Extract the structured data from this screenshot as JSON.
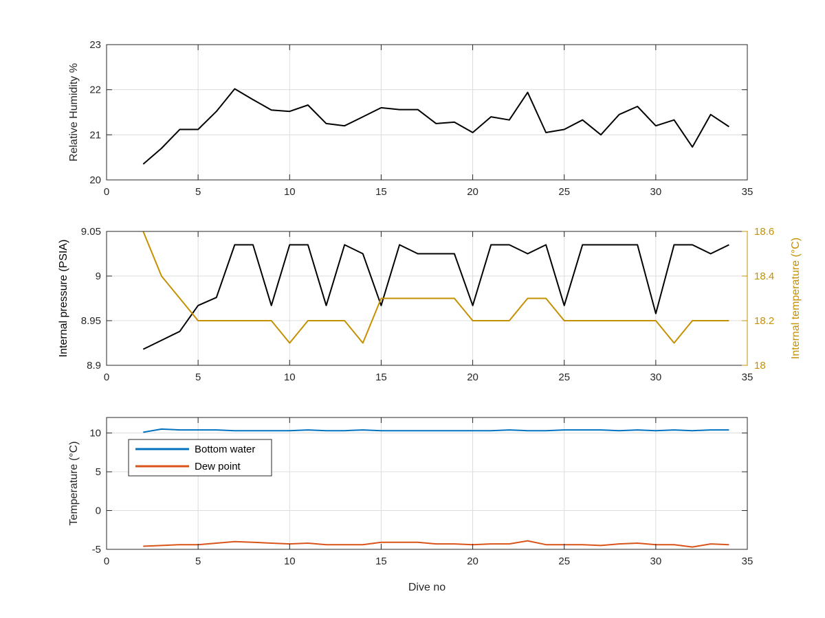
{
  "chart_data": [
    {
      "type": "line",
      "title": "",
      "xlabel": "",
      "ylabel": "Relative Humidity %",
      "xlim": [
        0,
        35
      ],
      "ylim": [
        20,
        23
      ],
      "xticks": [
        0,
        5,
        10,
        15,
        20,
        25,
        30,
        35
      ],
      "yticks": [
        20,
        21,
        22,
        23
      ],
      "grid": true,
      "series": [
        {
          "color": "#000000",
          "x": [
            2,
            3,
            4,
            5,
            6,
            7,
            8,
            9,
            10,
            11,
            12,
            13,
            14,
            15,
            16,
            17,
            18,
            19,
            20,
            21,
            22,
            23,
            24,
            25,
            26,
            27,
            28,
            29,
            30,
            31,
            32,
            33,
            34
          ],
          "y": [
            20.35,
            20.7,
            21.12,
            21.12,
            21.52,
            22.02,
            21.78,
            21.55,
            21.52,
            21.66,
            21.25,
            21.2,
            21.4,
            21.6,
            21.56,
            21.56,
            21.25,
            21.28,
            21.05,
            21.4,
            21.33,
            21.94,
            21.05,
            21.12,
            21.33,
            21.0,
            21.45,
            21.63,
            21.2,
            21.33,
            20.73,
            21.45,
            21.18
          ]
        }
      ]
    },
    {
      "type": "line",
      "title": "",
      "xlabel": "",
      "ylabel": "Internal pressure (PSIA)",
      "ylabel_right": "Internal temperature (°C)",
      "xlim": [
        0,
        35
      ],
      "ylim": [
        8.9,
        9.05
      ],
      "ylim_right": [
        18,
        18.6
      ],
      "xticks": [
        0,
        5,
        10,
        15,
        20,
        25,
        30,
        35
      ],
      "yticks": [
        8.9,
        8.95,
        9,
        9.05
      ],
      "yticks_right": [
        18,
        18.2,
        18.4,
        18.6
      ],
      "grid": true,
      "series": [
        {
          "axis": "left",
          "color": "#000000",
          "x": [
            2,
            3,
            4,
            5,
            6,
            7,
            8,
            9,
            10,
            11,
            12,
            13,
            14,
            15,
            16,
            17,
            18,
            19,
            20,
            21,
            22,
            23,
            24,
            25,
            26,
            27,
            28,
            29,
            30,
            31,
            32,
            33,
            34
          ],
          "y": [
            8.918,
            8.928,
            8.938,
            8.967,
            8.976,
            9.035,
            9.035,
            8.967,
            9.035,
            9.035,
            8.967,
            9.035,
            9.025,
            8.967,
            9.035,
            9.025,
            9.025,
            9.025,
            8.967,
            9.035,
            9.035,
            9.025,
            9.035,
            8.967,
            9.035,
            9.035,
            9.035,
            9.035,
            8.958,
            9.035,
            9.035,
            9.025,
            9.035
          ]
        },
        {
          "axis": "right",
          "color": "#c59000",
          "x": [
            2,
            3,
            4,
            5,
            6,
            7,
            8,
            9,
            10,
            11,
            12,
            13,
            14,
            15,
            16,
            17,
            18,
            19,
            20,
            21,
            22,
            23,
            24,
            25,
            26,
            27,
            28,
            29,
            30,
            31,
            32,
            33,
            34
          ],
          "y": [
            18.6,
            18.4,
            18.3,
            18.2,
            18.2,
            18.2,
            18.2,
            18.2,
            18.1,
            18.2,
            18.2,
            18.2,
            18.1,
            18.3,
            18.3,
            18.3,
            18.3,
            18.3,
            18.2,
            18.2,
            18.2,
            18.3,
            18.3,
            18.2,
            18.2,
            18.2,
            18.2,
            18.2,
            18.2,
            18.1,
            18.2,
            18.2,
            18.2
          ]
        }
      ]
    },
    {
      "type": "line",
      "title": "",
      "xlabel": "Dive no",
      "ylabel": "Temperature (°C)",
      "xlim": [
        0,
        35
      ],
      "ylim": [
        -5,
        12
      ],
      "xticks": [
        0,
        5,
        10,
        15,
        20,
        25,
        30,
        35
      ],
      "yticks": [
        -5,
        0,
        5,
        10
      ],
      "grid": true,
      "legend_position": "top-left",
      "series": [
        {
          "name": "Bottom water",
          "color": "#0072bd",
          "x": [
            2,
            3,
            4,
            5,
            6,
            7,
            8,
            9,
            10,
            11,
            12,
            13,
            14,
            15,
            16,
            17,
            18,
            19,
            20,
            21,
            22,
            23,
            24,
            25,
            26,
            27,
            28,
            29,
            30,
            31,
            32,
            33,
            34
          ],
          "y": [
            10.1,
            10.5,
            10.4,
            10.4,
            10.4,
            10.3,
            10.3,
            10.3,
            10.3,
            10.4,
            10.3,
            10.3,
            10.4,
            10.3,
            10.3,
            10.3,
            10.3,
            10.3,
            10.3,
            10.3,
            10.4,
            10.3,
            10.3,
            10.4,
            10.4,
            10.4,
            10.3,
            10.4,
            10.3,
            10.4,
            10.3,
            10.4,
            10.4
          ]
        },
        {
          "name": "Dew point",
          "color": "#d95319",
          "x": [
            2,
            3,
            4,
            5,
            6,
            7,
            8,
            9,
            10,
            11,
            12,
            13,
            14,
            15,
            16,
            17,
            18,
            19,
            20,
            21,
            22,
            23,
            24,
            25,
            26,
            27,
            28,
            29,
            30,
            31,
            32,
            33,
            34
          ],
          "y": [
            -4.6,
            -4.5,
            -4.4,
            -4.4,
            -4.2,
            -4.0,
            -4.1,
            -4.2,
            -4.3,
            -4.2,
            -4.4,
            -4.4,
            -4.4,
            -4.1,
            -4.1,
            -4.1,
            -4.3,
            -4.3,
            -4.4,
            -4.3,
            -4.3,
            -3.9,
            -4.4,
            -4.4,
            -4.4,
            -4.5,
            -4.3,
            -4.2,
            -4.4,
            -4.4,
            -4.7,
            -4.3,
            -4.4
          ]
        }
      ]
    }
  ]
}
